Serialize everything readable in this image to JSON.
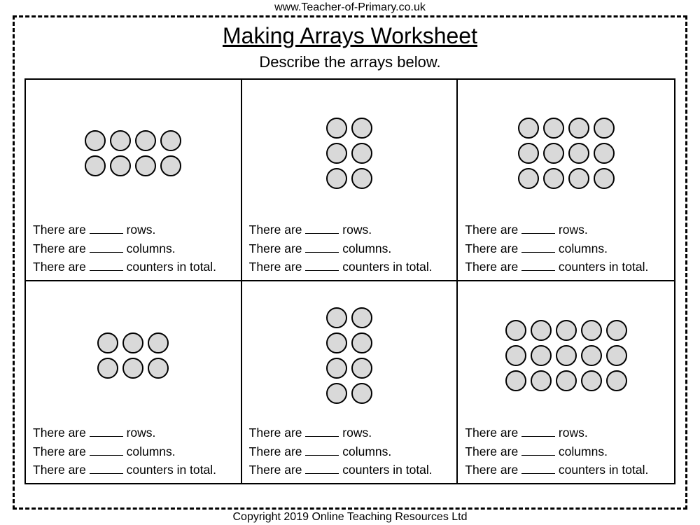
{
  "header_url": "www.Teacher-of-Primary.co.uk",
  "title": "Making Arrays Worksheet",
  "subtitle": "Describe the arrays below.",
  "footer": "Copyright 2019 Online Teaching Resources Ltd",
  "counter_fill": "#d9d9d9",
  "counter_stroke": "#000000",
  "counter_diameter": 30,
  "prompts": {
    "rows_pre": "There are ",
    "rows_post": " rows.",
    "cols_pre": "There are ",
    "cols_post": " columns.",
    "total_pre": "There are ",
    "total_post": " counters in total."
  },
  "cells": [
    {
      "rows": 2,
      "cols": 4
    },
    {
      "rows": 3,
      "cols": 2
    },
    {
      "rows": 3,
      "cols": 4
    },
    {
      "rows": 2,
      "cols": 3
    },
    {
      "rows": 4,
      "cols": 2
    },
    {
      "rows": 3,
      "cols": 5
    }
  ]
}
